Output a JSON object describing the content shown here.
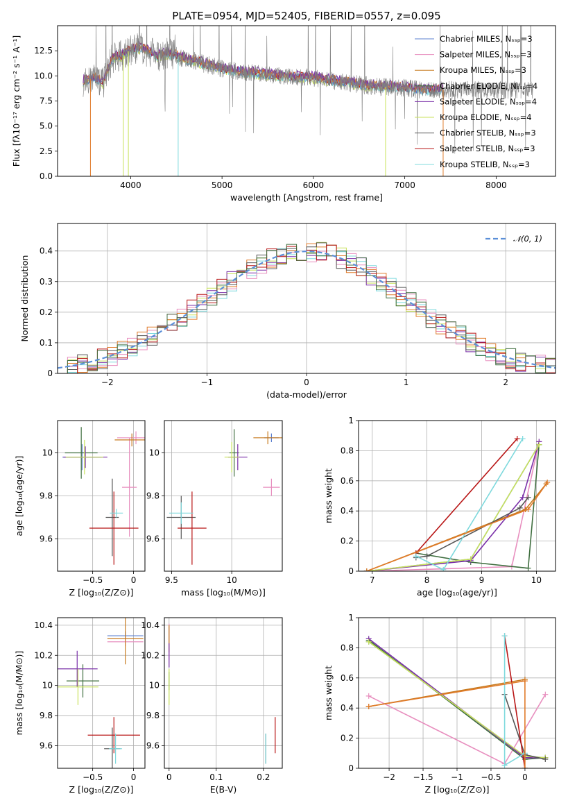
{
  "colors": {
    "chabrier_miles": "#5b7fcf",
    "salpeter_miles": "#e88fbf",
    "kroupa_miles": "#c77a1e",
    "chabrier_elodie": "#3f6e3f",
    "salpeter_elodie": "#7a2fa8",
    "kroupa_elodie": "#c8e25a",
    "chabrier_stelib": "#555555",
    "salpeter_stelib": "#b81414",
    "kroupa_stelib": "#7ed9dd",
    "data": "#808080",
    "orange": "#e07b2a",
    "gauss": "#5b8fd8"
  },
  "chart_data": [
    {
      "id": "spectrum",
      "type": "line",
      "title": "PLATE=0954, MJD=52405, FIBERID=0557, z=0.095",
      "xlabel": "wavelength [Angstrom, rest frame]",
      "ylabel": "Flux [fλ10⁻¹⁷ erg cm⁻² s⁻¹ A⁻¹]",
      "xlim": [
        3200,
        8650
      ],
      "ylim": [
        0,
        15
      ],
      "xticks": [
        4000,
        5000,
        6000,
        7000,
        8000
      ],
      "yticks": [
        0.0,
        2.5,
        5.0,
        7.5,
        10.0,
        12.5
      ],
      "legend_position": "top-right",
      "legend": [
        "Chabrier MILES, Nₛₛₚ=3",
        "Salpeter MILES, Nₛₛₚ=3",
        "Kroupa MILES, Nₛₛₚ=3",
        "Chabrier ELODIE, Nₛₛₚ=4",
        "Salpeter ELODIE, Nₛₛₚ=4",
        "Kroupa ELODIE, Nₛₛₚ=4",
        "Chabrier STELIB, Nₛₛₚ=3",
        "Salpeter STELIB, Nₛₛₚ=3",
        "Kroupa STELIB, Nₛₛₚ=3"
      ],
      "continuum": [
        [
          3500,
          9.5
        ],
        [
          3600,
          9.8
        ],
        [
          3700,
          9.3
        ],
        [
          3800,
          11.8
        ],
        [
          3900,
          12.0
        ],
        [
          4000,
          12.6
        ],
        [
          4100,
          12.8
        ],
        [
          4200,
          12.4
        ],
        [
          4300,
          12.0
        ],
        [
          4400,
          12.2
        ],
        [
          4500,
          12.0
        ],
        [
          4600,
          11.6
        ],
        [
          4700,
          11.5
        ],
        [
          4800,
          11.2
        ],
        [
          4900,
          11.0
        ],
        [
          5000,
          10.7
        ],
        [
          5200,
          10.4
        ],
        [
          5400,
          10.2
        ],
        [
          5600,
          10.0
        ],
        [
          5800,
          9.9
        ],
        [
          6000,
          9.8
        ],
        [
          6200,
          9.5
        ],
        [
          6400,
          9.3
        ],
        [
          6600,
          9.0
        ],
        [
          6800,
          8.9
        ],
        [
          7000,
          8.8
        ],
        [
          7200,
          8.6
        ],
        [
          7400,
          8.6
        ]
      ]
    },
    {
      "id": "residuals",
      "type": "line",
      "xlabel": "(data-model)/error",
      "ylabel": "Normed distribution",
      "xlim": [
        -2.5,
        2.5
      ],
      "ylim": [
        0,
        0.49
      ],
      "xticks": [
        -2,
        -1,
        0,
        1,
        2
      ],
      "yticks": [
        0.0,
        0.1,
        0.2,
        0.3,
        0.4
      ],
      "legend_position": "top-right",
      "legend_label": "𝒩(0, 1)",
      "gaussian": {
        "mean": 0,
        "sigma": 1
      }
    },
    {
      "id": "age_vs_Z",
      "type": "scatter",
      "xlabel": "Z [log₁₀(Z/Z⊙)]",
      "ylabel": "age  [log₁₀(age/yr)]",
      "xlim": [
        -0.93,
        0.14
      ],
      "ylim": [
        9.45,
        10.15
      ],
      "xticks": [
        -0.5,
        0.0
      ],
      "yticks": [
        9.6,
        9.8,
        10.0
      ],
      "points": [
        {
          "x": -0.63,
          "y": 9.98,
          "xerr": 0.24,
          "yerr": 0.06,
          "series": "chabrier_miles"
        },
        {
          "x": 0.03,
          "y": 10.07,
          "xerr": 0.23,
          "yerr": 0.03,
          "series": "salpeter_miles"
        },
        {
          "x": -0.05,
          "y": 9.84,
          "xerr": 0.09,
          "yerr": 0.23,
          "series": "salpeter_miles"
        },
        {
          "x": -0.02,
          "y": 10.06,
          "xerr": 0.21,
          "yerr": 0.03,
          "series": "kroupa_miles"
        },
        {
          "x": -0.64,
          "y": 10.0,
          "xerr": 0.2,
          "yerr": 0.12,
          "series": "chabrier_elodie"
        },
        {
          "x": -0.59,
          "y": 9.98,
          "xerr": 0.27,
          "yerr": 0.05,
          "series": "salpeter_elodie"
        },
        {
          "x": -0.6,
          "y": 9.98,
          "xerr": 0.23,
          "yerr": 0.08,
          "series": "kroupa_elodie"
        },
        {
          "x": -0.26,
          "y": 9.7,
          "xerr": 0.08,
          "yerr": 0.18,
          "series": "chabrier_stelib"
        },
        {
          "x": -0.24,
          "y": 9.65,
          "xerr": 0.3,
          "yerr": 0.17,
          "series": "salpeter_stelib"
        },
        {
          "x": -0.21,
          "y": 9.72,
          "xerr": 0.08,
          "yerr": 0.02,
          "series": "kroupa_stelib"
        }
      ]
    },
    {
      "id": "age_vs_mass",
      "type": "scatter",
      "xlabel": "mass [log₁₀(M/M⊙)]",
      "ylabel": "",
      "xlim": [
        9.44,
        10.42
      ],
      "ylim": [
        9.45,
        10.15
      ],
      "xticks": [
        9.5,
        10.0
      ],
      "yticks": [
        9.6,
        9.8,
        10.0
      ],
      "points": [
        {
          "x": 10.33,
          "y": 10.07,
          "xerr": 0.06,
          "yerr": 0.02,
          "series": "chabrier_miles"
        },
        {
          "x": 10.33,
          "y": 9.84,
          "xerr": 0.07,
          "yerr": 0.04,
          "series": "salpeter_miles"
        },
        {
          "x": 10.3,
          "y": 10.07,
          "xerr": 0.12,
          "yerr": 0.03,
          "series": "kroupa_miles"
        },
        {
          "x": 10.02,
          "y": 10.0,
          "xerr": 0.04,
          "yerr": 0.11,
          "series": "chabrier_elodie"
        },
        {
          "x": 10.05,
          "y": 9.98,
          "xerr": 0.08,
          "yerr": 0.06,
          "series": "salpeter_elodie"
        },
        {
          "x": 10.0,
          "y": 9.98,
          "xerr": 0.06,
          "yerr": 0.07,
          "series": "kroupa_elodie"
        },
        {
          "x": 9.58,
          "y": 9.7,
          "xerr": 0.12,
          "yerr": 0.1,
          "series": "chabrier_stelib"
        },
        {
          "x": 9.67,
          "y": 9.65,
          "xerr": 0.12,
          "yerr": 0.17,
          "series": "salpeter_stelib"
        },
        {
          "x": 9.58,
          "y": 9.72,
          "xerr": 0.1,
          "yerr": 0.05,
          "series": "kroupa_stelib"
        }
      ]
    },
    {
      "id": "massweight_vs_age",
      "type": "line",
      "xlabel": "age  [log₁₀(age/yr)]",
      "ylabel": "mass weight",
      "xlim": [
        6.75,
        10.35
      ],
      "ylim": [
        0.0,
        1.0
      ],
      "xticks": [
        7,
        8,
        9,
        10
      ],
      "yticks": [
        0.0,
        0.2,
        0.4,
        0.6,
        0.8,
        1.0
      ],
      "series": [
        {
          "key": "chabrier_miles",
          "x": [
            6.9,
            8.8,
            10.05
          ],
          "y": [
            0.0,
            0.08,
            0.84
          ]
        },
        {
          "key": "salpeter_miles",
          "x": [
            6.9,
            9.55,
            10.05
          ],
          "y": [
            0.0,
            0.03,
            0.86
          ]
        },
        {
          "key": "kroupa_miles",
          "x": [
            6.9,
            9.8,
            10.18
          ],
          "y": [
            0.0,
            0.41,
            0.58
          ]
        },
        {
          "key": "chabrier_elodie",
          "x": [
            7.8,
            8.8,
            9.85,
            10.05
          ],
          "y": [
            0.12,
            0.06,
            0.02,
            0.84
          ]
        },
        {
          "key": "salpeter_elodie",
          "x": [
            6.9,
            8.8,
            9.75,
            10.05
          ],
          "y": [
            0.0,
            0.07,
            0.49,
            0.86
          ]
        },
        {
          "key": "kroupa_elodie",
          "x": [
            6.9,
            8.8,
            10.05
          ],
          "y": [
            0.0,
            0.08,
            0.84
          ]
        },
        {
          "key": "chabrier_stelib",
          "x": [
            7.8,
            8.0,
            9.7,
            9.85
          ],
          "y": [
            0.09,
            0.1,
            0.42,
            0.49
          ]
        },
        {
          "key": "salpeter_stelib",
          "x": [
            7.8,
            9.65
          ],
          "y": [
            0.12,
            0.88
          ]
        },
        {
          "key": "kroupa_stelib",
          "x": [
            7.8,
            8.3,
            9.75
          ],
          "y": [
            0.1,
            0.01,
            0.88
          ]
        },
        {
          "key": "orange",
          "x": [
            6.9,
            9.85,
            10.2
          ],
          "y": [
            0.0,
            0.41,
            0.59
          ]
        }
      ]
    },
    {
      "id": "mass_vs_Z",
      "type": "scatter",
      "xlabel": "Z [log₁₀(Z/Z⊙)]",
      "ylabel": "mass [log₁₀(M/M⊙)]",
      "xlim": [
        -0.93,
        0.14
      ],
      "ylim": [
        9.45,
        10.45
      ],
      "xticks": [
        -0.5,
        0.0
      ],
      "yticks": [
        9.6,
        9.8,
        10.0,
        10.2,
        10.4
      ],
      "points": [
        {
          "x": -0.1,
          "y": 10.33,
          "xerr": 0.22,
          "yerr": 0.03,
          "series": "chabrier_miles"
        },
        {
          "x": -0.1,
          "y": 10.29,
          "xerr": 0.22,
          "yerr": 0.03,
          "series": "salpeter_miles"
        },
        {
          "x": -0.1,
          "y": 10.31,
          "xerr": 0.22,
          "yerr": 0.17,
          "series": "kroupa_miles"
        },
        {
          "x": -0.62,
          "y": 10.03,
          "xerr": 0.2,
          "yerr": 0.11,
          "series": "chabrier_elodie"
        },
        {
          "x": -0.69,
          "y": 10.11,
          "xerr": 0.25,
          "yerr": 0.12,
          "series": "salpeter_elodie"
        },
        {
          "x": -0.68,
          "y": 9.99,
          "xerr": 0.25,
          "yerr": 0.12,
          "series": "kroupa_elodie"
        },
        {
          "x": -0.26,
          "y": 9.58,
          "xerr": 0.1,
          "yerr": 0.14,
          "series": "chabrier_stelib"
        },
        {
          "x": -0.24,
          "y": 9.67,
          "xerr": 0.32,
          "yerr": 0.12,
          "series": "salpeter_stelib"
        },
        {
          "x": -0.22,
          "y": 9.58,
          "xerr": 0.08,
          "yerr": 0.1,
          "series": "kroupa_stelib"
        }
      ]
    },
    {
      "id": "mass_vs_EBV",
      "type": "scatter",
      "xlabel": "E(B-V)",
      "ylabel": "",
      "xlim": [
        -0.01,
        0.24
      ],
      "ylim": [
        9.45,
        10.45
      ],
      "xticks": [
        0.0,
        0.1,
        0.2
      ],
      "yticks": [
        9.6,
        9.8,
        10.0,
        10.2,
        10.4
      ],
      "points": [
        {
          "x": 0.0,
          "y": 10.33,
          "xerr": 0.0,
          "yerr": 0.06,
          "series": "chabrier_miles"
        },
        {
          "x": 0.0,
          "y": 10.29,
          "xerr": 0.0,
          "yerr": 0.12,
          "series": "salpeter_miles"
        },
        {
          "x": 0.0,
          "y": 10.31,
          "xerr": 0.0,
          "yerr": 0.09,
          "series": "kroupa_miles"
        },
        {
          "x": 0.0,
          "y": 10.03,
          "xerr": 0.0,
          "yerr": 0.06,
          "series": "chabrier_elodie"
        },
        {
          "x": 0.0,
          "y": 10.2,
          "xerr": 0.0,
          "yerr": 0.08,
          "series": "salpeter_elodie"
        },
        {
          "x": 0.0,
          "y": 9.99,
          "xerr": 0.0,
          "yerr": 0.12,
          "series": "kroupa_elodie"
        },
        {
          "x": 0.205,
          "y": 9.58,
          "xerr": 0.0,
          "yerr": 0.1,
          "series": "chabrier_stelib"
        },
        {
          "x": 0.225,
          "y": 9.67,
          "xerr": 0.0,
          "yerr": 0.12,
          "series": "salpeter_stelib"
        },
        {
          "x": 0.205,
          "y": 9.58,
          "xerr": 0.0,
          "yerr": 0.1,
          "series": "kroupa_stelib"
        }
      ]
    },
    {
      "id": "massweight_vs_Z",
      "type": "line",
      "xlabel": "Z [log₁₀(Z/Z⊙)]",
      "ylabel": "mass weight",
      "xlim": [
        -2.45,
        0.45
      ],
      "ylim": [
        0.0,
        1.0
      ],
      "xticks": [
        -2.0,
        -1.5,
        -1.0,
        -0.5,
        0.0
      ],
      "yticks": [
        0.0,
        0.2,
        0.4,
        0.6,
        0.8,
        1.0
      ],
      "series": [
        {
          "key": "chabrier_miles",
          "x": [
            -2.3,
            0.0,
            0.3
          ],
          "y": [
            0.84,
            0.08,
            0.07
          ]
        },
        {
          "key": "salpeter_miles",
          "x": [
            -2.3,
            -0.3,
            0.3
          ],
          "y": [
            0.48,
            0.03,
            0.49
          ]
        },
        {
          "key": "kroupa_miles",
          "x": [
            -2.3,
            0.0
          ],
          "y": [
            0.41,
            0.59
          ]
        },
        {
          "key": "chabrier_elodie",
          "x": [
            -2.3,
            0.0,
            0.3
          ],
          "y": [
            0.85,
            0.06,
            0.07
          ]
        },
        {
          "key": "salpeter_elodie",
          "x": [
            -2.3,
            0.0,
            0.3
          ],
          "y": [
            0.86,
            0.07,
            0.07
          ]
        },
        {
          "key": "kroupa_elodie",
          "x": [
            -2.3,
            0.0,
            0.3
          ],
          "y": [
            0.84,
            0.08,
            0.07
          ]
        },
        {
          "key": "chabrier_stelib",
          "x": [
            -0.3,
            0.0,
            0.3
          ],
          "y": [
            0.49,
            0.09,
            0.06
          ]
        },
        {
          "key": "salpeter_stelib",
          "x": [
            -0.3,
            0.0
          ],
          "y": [
            0.88,
            0.0
          ]
        },
        {
          "key": "kroupa_stelib",
          "x": [
            -0.3,
            -0.3,
            0.0
          ],
          "y": [
            0.88,
            0.02,
            0.1
          ]
        },
        {
          "key": "orange",
          "x": [
            -2.3,
            0.0,
            0.0
          ],
          "y": [
            0.41,
            0.58,
            0.0
          ]
        }
      ]
    }
  ]
}
